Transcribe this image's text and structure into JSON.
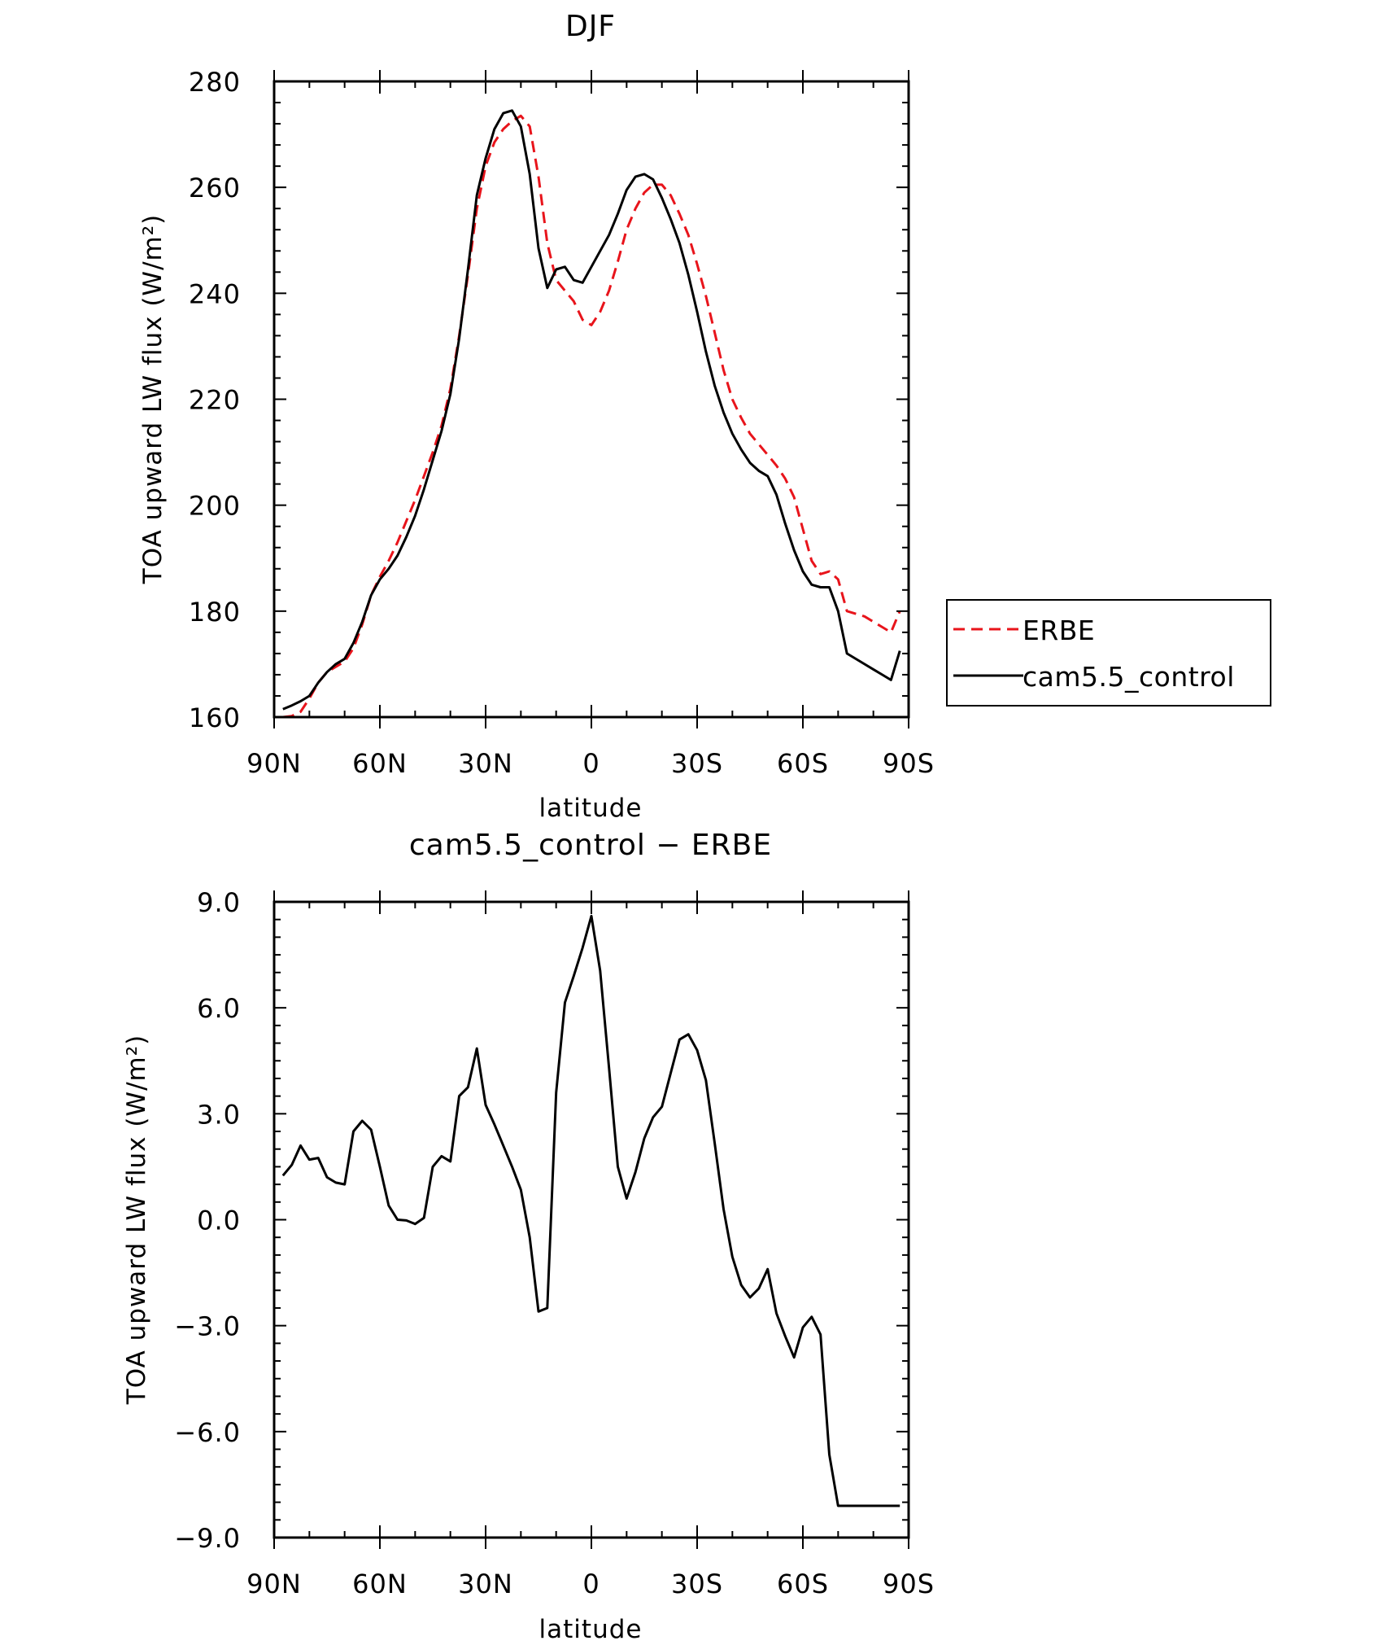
{
  "chart_data": [
    {
      "type": "line",
      "title": "DJF",
      "xlabel": "latitude",
      "ylabel": "TOA upward LW flux (W/m²)",
      "xlim": [
        90,
        -90
      ],
      "ylim": [
        160,
        280
      ],
      "x_tick_values": [
        90,
        60,
        30,
        0,
        -30,
        -60,
        -90
      ],
      "x_tick_labels": [
        "90N",
        "60N",
        "30N",
        "0",
        "30S",
        "60S",
        "90S"
      ],
      "y_tick_values": [
        160,
        180,
        200,
        220,
        240,
        260,
        280
      ],
      "y_tick_labels": [
        "160",
        "180",
        "200",
        "220",
        "240",
        "260",
        "280"
      ],
      "grid": false,
      "legend": "right",
      "series": [
        {
          "name": "ERBE",
          "color": "#e8141b",
          "dash": "dashed",
          "x": [
            87.5,
            85,
            82.5,
            80,
            77.5,
            75,
            72.5,
            70,
            67.5,
            65,
            62.5,
            60,
            57.5,
            55,
            52.5,
            50,
            47.5,
            45,
            42.5,
            40,
            37.5,
            35,
            32.5,
            30,
            27.5,
            25,
            22.5,
            20,
            17.5,
            15,
            12.5,
            10,
            7.5,
            5,
            2.5,
            0,
            -2.5,
            -5,
            -7.5,
            -10,
            -12.5,
            -15,
            -17.5,
            -20,
            -22.5,
            -25,
            -27.5,
            -30,
            -32.5,
            -35,
            -37.5,
            -40,
            -42.5,
            -45,
            -47.5,
            -50,
            -52.5,
            -55,
            -57.5,
            -60,
            -62.5,
            -65,
            -67.5,
            -70,
            -72.5,
            -75,
            -77.5,
            -80,
            -82.5,
            -85,
            -87.5
          ],
          "values": [
            160.0,
            160.2,
            161.0,
            163.5,
            166.5,
            168.5,
            169.5,
            170.5,
            173.0,
            177.5,
            183.0,
            186.5,
            189.5,
            193.0,
            197.0,
            201.0,
            205.5,
            210.0,
            215.0,
            222.0,
            232.0,
            243.5,
            256.0,
            264.0,
            268.5,
            271.0,
            272.5,
            273.5,
            271.5,
            262.0,
            249.5,
            242.5,
            240.5,
            238.5,
            235.0,
            234.0,
            236.5,
            240.5,
            246.0,
            252.0,
            256.0,
            259.0,
            260.5,
            260.5,
            258.5,
            255.0,
            251.0,
            245.5,
            239.5,
            232.5,
            225.5,
            220.0,
            216.5,
            213.5,
            211.5,
            209.5,
            207.5,
            205.0,
            201.5,
            195.5,
            189.5,
            187.0,
            187.5,
            186.0,
            180.0,
            179.5,
            179.0,
            178.0,
            177.0,
            176.0,
            180.0
          ]
        },
        {
          "name": "cam5.5_control",
          "color": "#000000",
          "dash": "solid",
          "x": [
            87.5,
            85,
            82.5,
            80,
            77.5,
            75,
            72.5,
            70,
            67.5,
            65,
            62.5,
            60,
            57.5,
            55,
            52.5,
            50,
            47.5,
            45,
            42.5,
            40,
            37.5,
            35,
            32.5,
            30,
            27.5,
            25,
            22.5,
            20,
            17.5,
            15,
            12.5,
            10,
            7.5,
            5,
            2.5,
            0,
            -2.5,
            -5,
            -7.5,
            -10,
            -12.5,
            -15,
            -17.5,
            -20,
            -22.5,
            -25,
            -27.5,
            -30,
            -32.5,
            -35,
            -37.5,
            -40,
            -42.5,
            -45,
            -47.5,
            -50,
            -52.5,
            -55,
            -57.5,
            -60,
            -62.5,
            -65,
            -67.5,
            -70,
            -72.5,
            -75,
            -77.5,
            -80,
            -82.5,
            -85,
            -87.5
          ],
          "values": [
            161.5,
            162.2,
            163.0,
            164.0,
            166.5,
            168.5,
            170.0,
            171.0,
            174.0,
            178.0,
            183.0,
            186.0,
            188.0,
            190.5,
            194.0,
            198.0,
            203.0,
            208.5,
            214.0,
            221.0,
            231.5,
            244.5,
            258.5,
            265.5,
            271.0,
            274.0,
            274.5,
            271.5,
            262.5,
            248.5,
            241.0,
            244.5,
            245.0,
            242.5,
            242.0,
            245.0,
            248.0,
            251.0,
            255.0,
            259.5,
            262.0,
            262.5,
            261.5,
            258.0,
            254.0,
            249.5,
            243.5,
            236.5,
            229.0,
            222.5,
            217.5,
            213.5,
            210.5,
            208.0,
            206.5,
            205.5,
            202.0,
            196.5,
            191.5,
            187.5,
            185.0,
            184.5,
            184.5,
            180.0,
            172.0,
            171.0,
            170.0,
            169.0,
            168.0,
            167.0,
            172.5
          ]
        }
      ]
    },
    {
      "type": "line",
      "title": "cam5.5_control − ERBE",
      "xlabel": "latitude",
      "ylabel": "TOA upward LW flux (W/m²)",
      "xlim": [
        90,
        -90
      ],
      "ylim": [
        -9.0,
        9.0
      ],
      "x_tick_values": [
        90,
        60,
        30,
        0,
        -30,
        -60,
        -90
      ],
      "x_tick_labels": [
        "90N",
        "60N",
        "30N",
        "0",
        "30S",
        "60S",
        "90S"
      ],
      "y_tick_values": [
        9,
        6,
        3,
        0,
        -3,
        -6,
        -9
      ],
      "y_tick_labels": [
        "9.0",
        "6.0",
        "3.0",
        "0.0",
        "−3.0",
        "−6.0",
        "−9.0"
      ],
      "grid": false,
      "series": [
        {
          "color": "#000000",
          "dash": "solid",
          "x": [
            87.5,
            85,
            82.5,
            80,
            77.5,
            75,
            72.5,
            70,
            67.5,
            65,
            62.5,
            60,
            57.5,
            55,
            52.5,
            50,
            47.5,
            45,
            42.5,
            40,
            37.5,
            35,
            32.5,
            30,
            27.5,
            25,
            22.5,
            20,
            17.5,
            15,
            12.5,
            10,
            7.5,
            5,
            2.5,
            0,
            -2.5,
            -5,
            -7.5,
            -10,
            -12.5,
            -15,
            -17.5,
            -20,
            -22.5,
            -25,
            -27.5,
            -30,
            -32.5,
            -35,
            -37.5,
            -40,
            -42.5,
            -45,
            -47.5,
            -50,
            -52.5,
            -55,
            -57.5,
            -60,
            -62.5,
            -65,
            -67.5,
            -70,
            -72.5,
            -75,
            -77.5,
            -80,
            -82.5,
            -85,
            -87.5
          ],
          "values": [
            1.25,
            1.55,
            2.1,
            1.7,
            1.75,
            1.2,
            1.05,
            1.0,
            2.5,
            2.8,
            2.55,
            1.5,
            0.4,
            0.0,
            -0.02,
            -0.12,
            0.05,
            1.5,
            1.8,
            1.65,
            3.5,
            3.75,
            4.85,
            3.25,
            2.7,
            2.1,
            1.5,
            0.85,
            -0.5,
            -2.6,
            -2.5,
            3.6,
            6.15,
            6.9,
            7.7,
            8.6,
            7.05,
            4.3,
            1.5,
            0.6,
            1.35,
            2.3,
            2.9,
            3.2,
            4.15,
            5.1,
            5.25,
            4.8,
            3.95,
            2.15,
            0.3,
            -1.05,
            -1.85,
            -2.2,
            -1.95,
            -1.4,
            -2.65,
            -3.3,
            -3.9,
            -3.05,
            -2.75,
            -3.25,
            -6.65,
            -8.1,
            -8.1,
            -8.1,
            -8.1,
            -8.1,
            -8.1,
            -8.1,
            -8.1
          ]
        }
      ]
    }
  ]
}
